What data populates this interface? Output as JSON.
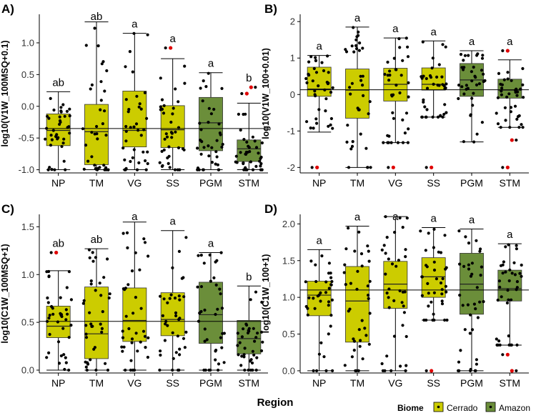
{
  "colors": {
    "cerrado": "#cccc00",
    "amazon": "#6b8e3a",
    "outlier": "#e00000",
    "point": "#000000"
  },
  "chart_data": [
    {
      "panel": "A)",
      "type": "boxplot",
      "ylabel": "log10(V1W_100MSQ+0.1)",
      "xlabel": "Region",
      "ylim": [
        -1.05,
        1.45
      ],
      "yticks": [
        -1.0,
        -0.5,
        0.0,
        0.5,
        1.0
      ],
      "ytick_labels": [
        "-1.0",
        "-0.5",
        "0.0",
        "0.5",
        "1.0"
      ],
      "reference_line": -0.35,
      "categories": [
        "NP",
        "TM",
        "VG",
        "SS",
        "PGM",
        "STM"
      ],
      "biome": [
        "Cerrado",
        "Cerrado",
        "Cerrado",
        "Cerrado",
        "Amazon",
        "Amazon"
      ],
      "letters": [
        "ab",
        "ab",
        "a",
        "a",
        "a",
        "b"
      ],
      "boxes": [
        {
          "lower_whisker": -1.0,
          "q1": -0.62,
          "median": -0.38,
          "q3": -0.12,
          "upper_whisker": 0.23,
          "outliers": []
        },
        {
          "lower_whisker": -1.0,
          "q1": -0.92,
          "median": -0.4,
          "q3": 0.03,
          "upper_whisker": 1.33,
          "outliers": []
        },
        {
          "lower_whisker": -1.0,
          "q1": -0.64,
          "median": -0.38,
          "q3": 0.24,
          "upper_whisker": 1.15,
          "outliers": []
        },
        {
          "lower_whisker": -1.0,
          "q1": -0.65,
          "median": -0.37,
          "q3": 0.01,
          "upper_whisker": 0.75,
          "outliers": [
            0.92
          ]
        },
        {
          "lower_whisker": -1.0,
          "q1": -0.7,
          "median": -0.26,
          "q3": 0.14,
          "upper_whisker": 0.53,
          "outliers": []
        },
        {
          "lower_whisker": -1.0,
          "q1": -0.87,
          "median": -0.67,
          "q3": -0.53,
          "upper_whisker": 0.05,
          "outliers": [
            0.2,
            0.3
          ]
        }
      ]
    },
    {
      "panel": "B)",
      "type": "boxplot",
      "ylabel": "log10(V1W_100+0.01)",
      "xlabel": "Region",
      "ylim": [
        -2.15,
        2.2
      ],
      "yticks": [
        -2,
        -1,
        0,
        1,
        2
      ],
      "ytick_labels": [
        "-2",
        "-1",
        "0",
        "1",
        "2"
      ],
      "reference_line": 0.13,
      "categories": [
        "NP",
        "TM",
        "VG",
        "SS",
        "PGM",
        "STM"
      ],
      "biome": [
        "Cerrado",
        "Cerrado",
        "Cerrado",
        "Cerrado",
        "Amazon",
        "Amazon"
      ],
      "letters": [
        "a",
        "a",
        "a",
        "a",
        "a",
        "a"
      ],
      "boxes": [
        {
          "lower_whisker": -1.03,
          "q1": -0.05,
          "median": 0.15,
          "q3": 0.75,
          "upper_whisker": 1.07,
          "outliers": [
            -2.0
          ]
        },
        {
          "lower_whisker": -2.0,
          "q1": -0.65,
          "median": 0.12,
          "q3": 0.7,
          "upper_whisker": 1.85,
          "outliers": []
        },
        {
          "lower_whisker": -1.32,
          "q1": -0.18,
          "median": 0.28,
          "q3": 0.72,
          "upper_whisker": 1.55,
          "outliers": [
            -2.0
          ]
        },
        {
          "lower_whisker": -0.62,
          "q1": 0.12,
          "median": 0.28,
          "q3": 0.73,
          "upper_whisker": 1.47,
          "outliers": [
            -2.0
          ]
        },
        {
          "lower_whisker": -1.3,
          "q1": -0.05,
          "median": 0.4,
          "q3": 0.85,
          "upper_whisker": 1.2,
          "outliers": []
        },
        {
          "lower_whisker": -0.9,
          "q1": -0.1,
          "median": 0.12,
          "q3": 0.42,
          "upper_whisker": 0.95,
          "outliers": [
            1.2,
            -1.25,
            -2.0
          ]
        }
      ]
    },
    {
      "panel": "C)",
      "type": "boxplot",
      "ylabel": "log10(C1W_100MSQ+1)",
      "xlabel": "Region",
      "ylim": [
        -0.03,
        1.63
      ],
      "yticks": [
        0.0,
        0.5,
        1.0,
        1.5
      ],
      "ytick_labels": [
        "0.0",
        "0.5",
        "1.0",
        "1.5"
      ],
      "reference_line": 0.51,
      "categories": [
        "NP",
        "TM",
        "VG",
        "SS",
        "PGM",
        "STM"
      ],
      "biome": [
        "Cerrado",
        "Cerrado",
        "Cerrado",
        "Cerrado",
        "Amazon",
        "Amazon"
      ],
      "letters": [
        "ab",
        "ab",
        "a",
        "a",
        "a",
        "b"
      ],
      "boxes": [
        {
          "lower_whisker": 0.0,
          "q1": 0.34,
          "median": 0.46,
          "q3": 0.67,
          "upper_whisker": 1.04,
          "outliers": [
            1.23
          ]
        },
        {
          "lower_whisker": 0.0,
          "q1": 0.12,
          "median": 0.38,
          "q3": 0.87,
          "upper_whisker": 1.27,
          "outliers": []
        },
        {
          "lower_whisker": 0.0,
          "q1": 0.3,
          "median": 0.52,
          "q3": 0.86,
          "upper_whisker": 1.55,
          "outliers": []
        },
        {
          "lower_whisker": 0.0,
          "q1": 0.36,
          "median": 0.53,
          "q3": 0.81,
          "upper_whisker": 1.46,
          "outliers": []
        },
        {
          "lower_whisker": 0.0,
          "q1": 0.28,
          "median": 0.58,
          "q3": 0.92,
          "upper_whisker": 1.23,
          "outliers": []
        },
        {
          "lower_whisker": 0.0,
          "q1": 0.17,
          "median": 0.33,
          "q3": 0.52,
          "upper_whisker": 0.88,
          "outliers": []
        }
      ]
    },
    {
      "panel": "D)",
      "type": "boxplot",
      "ylabel": "log10(C1W_100+1)",
      "xlabel": "Region",
      "ylim": [
        -0.03,
        2.13
      ],
      "yticks": [
        0.0,
        0.5,
        1.0,
        1.5,
        2.0
      ],
      "ytick_labels": [
        "0.0",
        "0.5",
        "1.0",
        "1.5",
        "2.0"
      ],
      "reference_line": 1.1,
      "categories": [
        "NP",
        "TM",
        "VG",
        "SS",
        "PGM",
        "STM"
      ],
      "biome": [
        "Cerrado",
        "Cerrado",
        "Cerrado",
        "Cerrado",
        "Amazon",
        "Amazon"
      ],
      "letters": [
        "a",
        "a",
        "a",
        "a",
        "a",
        "a"
      ],
      "boxes": [
        {
          "lower_whisker": 0.0,
          "q1": 0.75,
          "median": 1.03,
          "q3": 1.22,
          "upper_whisker": 1.65,
          "outliers": []
        },
        {
          "lower_whisker": 0.0,
          "q1": 0.39,
          "median": 0.95,
          "q3": 1.42,
          "upper_whisker": 1.97,
          "outliers": []
        },
        {
          "lower_whisker": 0.0,
          "q1": 0.85,
          "median": 1.18,
          "q3": 1.49,
          "upper_whisker": 2.1,
          "outliers": []
        },
        {
          "lower_whisker": 0.69,
          "q1": 1.0,
          "median": 1.28,
          "q3": 1.54,
          "upper_whisker": 1.95,
          "outliers": [
            0.0
          ]
        },
        {
          "lower_whisker": 0.0,
          "q1": 0.77,
          "median": 1.18,
          "q3": 1.6,
          "upper_whisker": 1.93,
          "outliers": []
        },
        {
          "lower_whisker": 0.35,
          "q1": 0.95,
          "median": 1.12,
          "q3": 1.37,
          "upper_whisker": 1.73,
          "outliers": [
            0.22,
            0.0
          ]
        }
      ]
    }
  ],
  "shared": {
    "xaxis_title": "Region",
    "legend_title": "Biome",
    "legend_items": [
      {
        "label": "Cerrado",
        "color": "#cccc00"
      },
      {
        "label": "Amazon",
        "color": "#6b8e3a"
      }
    ]
  }
}
